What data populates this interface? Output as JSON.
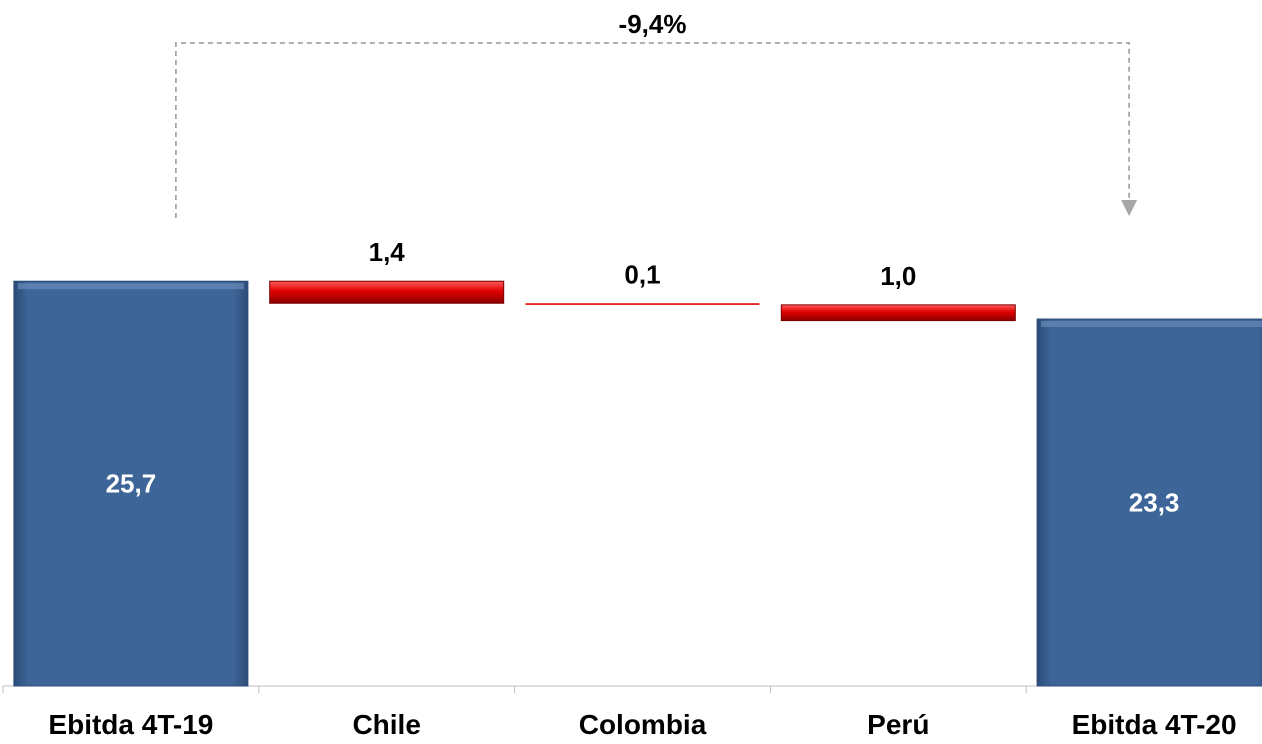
{
  "chart_data": {
    "type": "bar",
    "subtype": "waterfall",
    "categories": [
      "Ebitda 4T-19",
      "Chile",
      "Colombia",
      "Perú",
      "Ebitda 4T-20"
    ],
    "values": [
      25.7,
      -1.4,
      -0.1,
      -1.0,
      23.3
    ],
    "bar_kinds": [
      "total",
      "delta",
      "delta",
      "delta",
      "total"
    ],
    "value_labels": [
      "25,7",
      "1,4",
      "0,1",
      "1,0",
      "23,3"
    ],
    "ylim": [
      0,
      26.5
    ],
    "grid": false,
    "annotation": {
      "text": "-9,4%",
      "from": "Ebitda 4T-19",
      "to": "Ebitda 4T-20"
    },
    "colors": {
      "total": "#3e6597",
      "decrease": "#e00000",
      "label_on_bar": "#ffffff",
      "label": "#000000",
      "annotation_line": "#a6a6a6"
    }
  }
}
